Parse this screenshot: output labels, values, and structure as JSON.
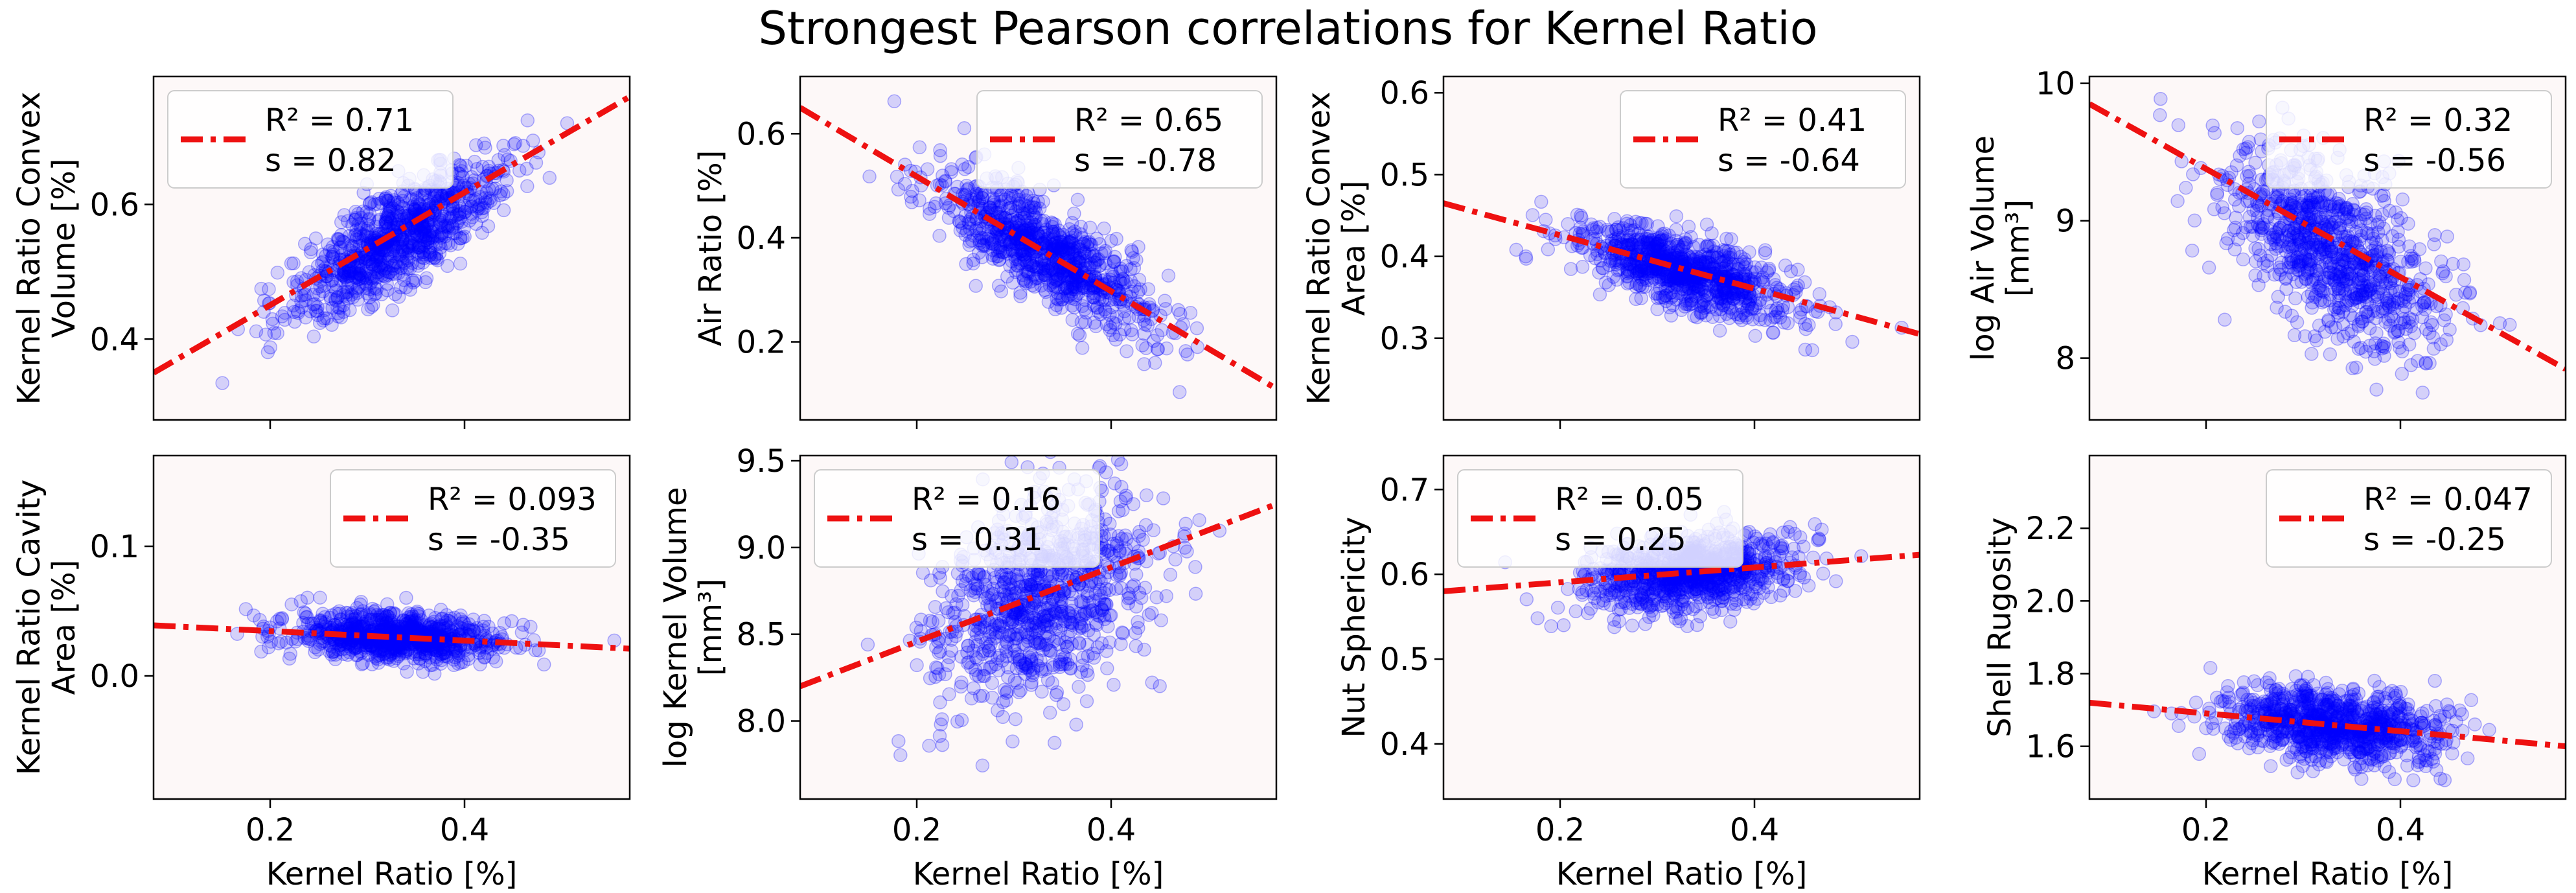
{
  "title": "Strongest Pearson correlations for Kernel Ratio",
  "chart_data": [
    {
      "type": "scatter",
      "ylabel": [
        "Kernel Ratio Convex",
        "Volume [%]"
      ],
      "xlabel": "",
      "xlim": [
        0.08,
        0.57
      ],
      "ylim": [
        0.28,
        0.79
      ],
      "xticks": [
        "0.2",
        "0.4"
      ],
      "yticks": [
        "0.4",
        "0.6"
      ],
      "legend": {
        "r2": "R² = 0.71",
        "s": "s   = 0.82",
        "loc": "upper-left"
      },
      "fit_line": {
        "x": [
          0.08,
          0.57
        ],
        "y": [
          0.35,
          0.76
        ]
      },
      "cloud": {
        "x_center": 0.33,
        "x_sd": 0.055,
        "y_center": 0.55,
        "slope": 0.84,
        "noise": 0.035,
        "n": 900
      }
    },
    {
      "type": "scatter",
      "ylabel": [
        "Air Ratio [%]"
      ],
      "xlabel": "",
      "xlim": [
        0.08,
        0.57
      ],
      "ylim": [
        0.05,
        0.71
      ],
      "xticks": [
        "0.2",
        "0.4"
      ],
      "yticks": [
        "0.2",
        "0.4",
        "0.6"
      ],
      "legend": {
        "r2": "R² = 0.65",
        "s": "s   = -0.78",
        "loc": "upper-right"
      },
      "fit_line": {
        "x": [
          0.08,
          0.57
        ],
        "y": [
          0.65,
          0.11
        ]
      },
      "cloud": {
        "x_center": 0.33,
        "x_sd": 0.055,
        "y_center": 0.375,
        "slope": -1.1,
        "noise": 0.045,
        "n": 900
      }
    },
    {
      "type": "scatter",
      "ylabel": [
        "Kernel Ratio Convex",
        "Area [%]"
      ],
      "xlabel": "",
      "xlim": [
        0.08,
        0.57
      ],
      "ylim": [
        0.2,
        0.62
      ],
      "xticks": [
        "0.2",
        "0.4"
      ],
      "yticks": [
        "0.3",
        "0.4",
        "0.5",
        "0.6"
      ],
      "legend": {
        "r2": "R² = 0.41",
        "s": "s   = -0.64",
        "loc": "upper-right"
      },
      "fit_line": {
        "x": [
          0.08,
          0.57
        ],
        "y": [
          0.465,
          0.305
        ]
      },
      "cloud": {
        "x_center": 0.33,
        "x_sd": 0.055,
        "y_center": 0.38,
        "slope": -0.33,
        "noise": 0.022,
        "n": 900
      }
    },
    {
      "type": "scatter",
      "ylabel": [
        "log Air Volume",
        "[mm³]"
      ],
      "xlabel": "",
      "xlim": [
        0.08,
        0.57
      ],
      "ylim": [
        7.55,
        10.05
      ],
      "xticks": [
        "0.2",
        "0.4"
      ],
      "yticks": [
        "8",
        "9",
        "10"
      ],
      "legend": {
        "r2": "R² = 0.32",
        "s": "s   = -0.56",
        "loc": "upper-right"
      },
      "fit_line": {
        "x": [
          0.08,
          0.57
        ],
        "y": [
          9.85,
          7.92
        ]
      },
      "cloud": {
        "x_center": 0.33,
        "x_sd": 0.055,
        "y_center": 8.8,
        "slope": -4.0,
        "noise": 0.3,
        "n": 900
      }
    },
    {
      "type": "scatter",
      "ylabel": [
        "Kernel Ratio Cavity",
        "Area [%]"
      ],
      "xlabel": "Kernel Ratio [%]",
      "xlim": [
        0.08,
        0.57
      ],
      "ylim": [
        -0.095,
        0.17
      ],
      "xticks": [
        "0.2",
        "0.4"
      ],
      "yticks": [
        "0.0",
        "0.1"
      ],
      "legend": {
        "r2": "R² = 0.093",
        "s": "s   = -0.35",
        "loc": "upper-right"
      },
      "fit_line": {
        "x": [
          0.08,
          0.57
        ],
        "y": [
          0.039,
          0.021
        ]
      },
      "cloud": {
        "x_center": 0.33,
        "x_sd": 0.055,
        "y_center": 0.03,
        "slope": -0.037,
        "noise": 0.009,
        "n": 900
      }
    },
    {
      "type": "scatter",
      "ylabel": [
        "log Kernel Volume",
        "[mm³]"
      ],
      "xlabel": "Kernel Ratio [%]",
      "xlim": [
        0.08,
        0.57
      ],
      "ylim": [
        7.55,
        9.53
      ],
      "xticks": [
        "0.2",
        "0.4"
      ],
      "yticks": [
        "8.0",
        "8.5",
        "9.0",
        "9.5"
      ],
      "legend": {
        "r2": "R² = 0.16",
        "s": "s   = 0.31",
        "loc": "upper-left"
      },
      "fit_line": {
        "x": [
          0.08,
          0.57
        ],
        "y": [
          8.2,
          9.25
        ]
      },
      "cloud": {
        "x_center": 0.33,
        "x_sd": 0.055,
        "y_center": 8.72,
        "slope": 2.15,
        "noise": 0.28,
        "n": 900
      }
    },
    {
      "type": "scatter",
      "ylabel": [
        "Nut Sphericity"
      ],
      "xlabel": "Kernel Ratio [%]",
      "xlim": [
        0.08,
        0.57
      ],
      "ylim": [
        0.335,
        0.74
      ],
      "xticks": [
        "0.2",
        "0.4"
      ],
      "yticks": [
        "0.4",
        "0.5",
        "0.6",
        "0.7"
      ],
      "legend": {
        "r2": "R² = 0.05",
        "s": "s   = 0.25",
        "loc": "upper-left"
      },
      "fit_line": {
        "x": [
          0.08,
          0.57
        ],
        "y": [
          0.58,
          0.623
        ]
      },
      "cloud": {
        "x_center": 0.33,
        "x_sd": 0.055,
        "y_center": 0.602,
        "slope": 0.09,
        "noise": 0.022,
        "n": 900
      }
    },
    {
      "type": "scatter",
      "ylabel": [
        "Shell Rugosity"
      ],
      "xlabel": "Kernel Ratio [%]",
      "xlim": [
        0.08,
        0.57
      ],
      "ylim": [
        1.455,
        2.4
      ],
      "xticks": [
        "0.2",
        "0.4"
      ],
      "yticks": [
        "1.6",
        "1.8",
        "2.0",
        "2.2"
      ],
      "legend": {
        "r2": "R² = 0.047",
        "s": "s   = -0.25",
        "loc": "upper-right"
      },
      "fit_line": {
        "x": [
          0.08,
          0.57
        ],
        "y": [
          1.72,
          1.6
        ]
      },
      "cloud": {
        "x_center": 0.33,
        "x_sd": 0.055,
        "y_center": 1.66,
        "slope": -0.25,
        "noise": 0.05,
        "n": 900
      }
    }
  ],
  "colors": {
    "points": "#0000ff",
    "fit_line": "#ee1111",
    "plot_bg": "#fdf8f8",
    "axis": "#000000"
  }
}
